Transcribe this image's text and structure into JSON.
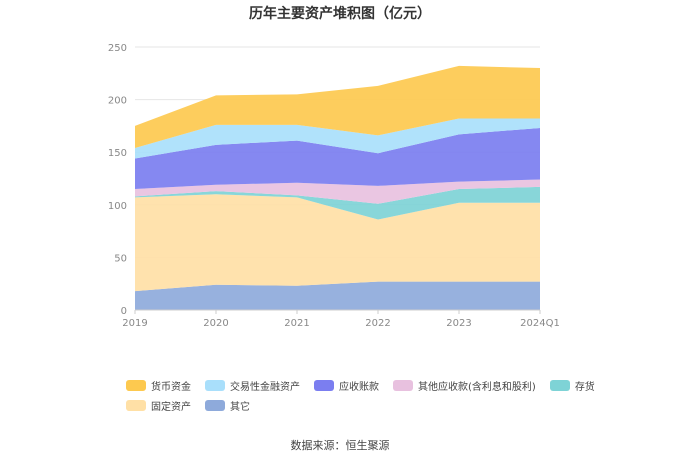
{
  "chart_data": {
    "type": "area",
    "stacked": true,
    "title": "历年主要资产堆积图（亿元）",
    "x": [
      "2019",
      "2020",
      "2021",
      "2022",
      "2023",
      "2024Q1"
    ],
    "yticks": [
      0,
      50,
      100,
      150,
      200,
      250
    ],
    "ylim": [
      0,
      250
    ],
    "grid": "horizontal",
    "legend_position": "bottom",
    "series": [
      {
        "name": "其它",
        "color": "#8eaadb",
        "values": [
          18,
          24,
          23,
          27,
          27,
          27
        ]
      },
      {
        "name": "固定资产",
        "color": "#ffe0a6",
        "values": [
          89,
          86,
          84,
          59,
          75,
          75
        ]
      },
      {
        "name": "存货",
        "color": "#7ed3d6",
        "values": [
          1,
          3,
          2,
          15,
          13,
          15
        ]
      },
      {
        "name": "其他应收款(含利息和股利)",
        "color": "#e8c1df",
        "values": [
          7,
          6,
          12,
          17,
          7,
          7
        ]
      },
      {
        "name": "应收账款",
        "color": "#7b7ef0",
        "values": [
          29,
          38,
          40,
          31,
          45,
          49
        ]
      },
      {
        "name": "交易性金融资产",
        "color": "#a9dffb",
        "values": [
          10,
          19,
          15,
          17,
          15,
          9
        ]
      },
      {
        "name": "货币资金",
        "color": "#fdc94f",
        "values": [
          21,
          28,
          29,
          47,
          50,
          48
        ]
      }
    ]
  },
  "legend": {
    "row1": [
      "货币资金",
      "交易性金融资产",
      "应收账款",
      "其他应收款(含利息和股利)",
      "存货"
    ],
    "row2": [
      "固定资产",
      "其它"
    ]
  },
  "source": "数据来源：恒生聚源"
}
